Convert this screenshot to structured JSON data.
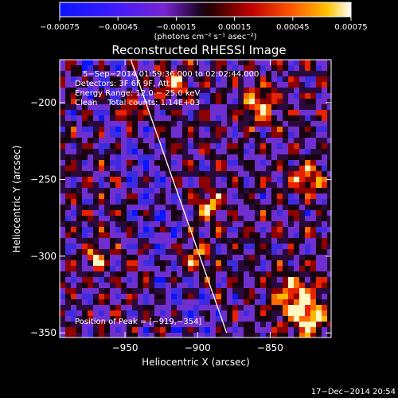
{
  "chart_data": {
    "type": "heatmap",
    "title": "Reconstructed RHESSI Image",
    "xlabel": "Heliocentric X (arcsec)",
    "ylabel": "Heliocentric Y (arcsec)",
    "xlim": [
      -995,
      -808
    ],
    "ylim": [
      -353,
      -172
    ],
    "x_ticks": [
      -950,
      -900,
      -850
    ],
    "x_tick_labels": [
      "−950",
      "−900",
      "−850"
    ],
    "y_ticks": [
      -200,
      -250,
      -300,
      -350
    ],
    "y_tick_labels": [
      "−200",
      "−250",
      "−300",
      "−350"
    ],
    "colorbar": {
      "min": -0.00075,
      "max": 0.00075,
      "ticks": [
        -0.00075,
        -0.00045,
        -0.00015,
        0.00015,
        0.00045,
        0.00075
      ],
      "tick_labels": [
        "−0.00075",
        "−0.00045",
        "−0.00015",
        "0.00015",
        "0.00045",
        "0.00075"
      ],
      "unit_label": "(photons cm⁻² s⁻¹ asec⁻²)"
    },
    "annotations": [
      "5−Sep−2014 01:59:36.000 to 02:02:44.000",
      "Detectors: 3F 6F 9F, Att 0",
      "Energy Range: 12.0 − 25.0 keV",
      "Clean    Total counts: 1.14E+03"
    ],
    "peak_label": "Position of Peak = [−919,−354]",
    "peak": [
      -919,
      -354
    ],
    "limb_line": [
      [
        -946,
        -172
      ],
      [
        -880,
        -350
      ]
    ],
    "colors": [
      "#0a16ff",
      "#6c2bd9",
      "#1c0838",
      "#b50000",
      "#ff3a00",
      "#ffb000",
      "#fffcc8"
    ],
    "grid": false
  },
  "footer": {
    "date": "17−Dec−2014 20:54"
  }
}
